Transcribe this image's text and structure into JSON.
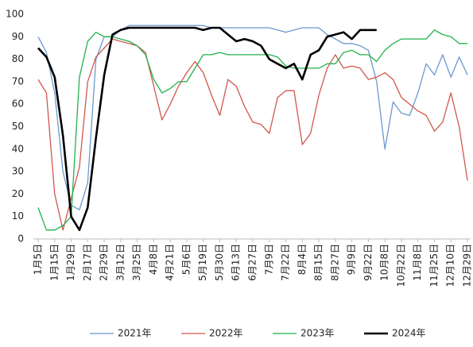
{
  "chart_data": {
    "type": "line",
    "categories": [
      "1月5日",
      null,
      "1月15日",
      null,
      "1月29日",
      null,
      "2月17日",
      null,
      "2月29日",
      null,
      "3月12日",
      null,
      "3月25日",
      null,
      "4月8日",
      null,
      "4月21日",
      null,
      "5月6日",
      null,
      "5月19日",
      null,
      "5月30日",
      null,
      "6月13日",
      null,
      "6月27日",
      null,
      "7月9日",
      null,
      "7月22日",
      null,
      "8月4日",
      null,
      "8月15日",
      null,
      "8月27日",
      null,
      "9月9日",
      null,
      "9月22日",
      null,
      "10月8日",
      null,
      "10月22日",
      null,
      "11月8日",
      null,
      "11月25日",
      null,
      "12月10日",
      null,
      "12月29日"
    ],
    "series": [
      {
        "name": "2021年",
        "color": "#6a98d0",
        "width": 1.3,
        "values": [
          90,
          83,
          65,
          30,
          15,
          13,
          25,
          80,
          90,
          90,
          93,
          95,
          95,
          95,
          95,
          95,
          95,
          95,
          95,
          95,
          95,
          94,
          94,
          94,
          94,
          94,
          94,
          94,
          94,
          93,
          92,
          93,
          94,
          94,
          94,
          91,
          89,
          87,
          87,
          86,
          84,
          70,
          40,
          61,
          56,
          55,
          65,
          78,
          73,
          82,
          72,
          81,
          73
        ]
      },
      {
        "name": "2022年",
        "color": "#d0574e",
        "width": 1.3,
        "values": [
          71,
          65,
          20,
          4,
          18,
          32,
          70,
          81,
          85,
          89,
          88,
          87,
          86,
          83,
          68,
          53,
          60,
          68,
          74,
          79,
          74,
          64,
          55,
          71,
          68,
          59,
          52,
          51,
          47,
          63,
          66,
          66,
          42,
          47,
          64,
          76,
          82,
          76,
          77,
          76,
          71,
          72,
          74,
          71,
          63,
          60,
          57,
          55,
          48,
          52,
          65,
          50,
          26
        ]
      },
      {
        "name": "2023年",
        "color": "#22b14c",
        "width": 1.3,
        "values": [
          14,
          4,
          4,
          6,
          10,
          72,
          88,
          92,
          90,
          90,
          89,
          88,
          86,
          82,
          71,
          65,
          67,
          70,
          70,
          76,
          82,
          82,
          83,
          82,
          82,
          82,
          82,
          82,
          82,
          81,
          77,
          76,
          76,
          76,
          76,
          78,
          78,
          83,
          84,
          82,
          82,
          79,
          84,
          87,
          89,
          89,
          89,
          89,
          93,
          91,
          90,
          87,
          87
        ]
      },
      {
        "name": "2024年",
        "color": "#000000",
        "width": 2.6,
        "values": [
          85,
          81,
          72,
          46,
          10,
          4,
          14,
          45,
          73,
          91,
          93,
          94,
          94,
          94,
          94,
          94,
          94,
          94,
          94,
          94,
          93,
          94,
          94,
          91,
          88,
          89,
          88,
          86,
          80,
          78,
          76,
          78,
          71,
          82,
          84,
          90,
          91,
          92,
          89,
          93,
          93,
          93,
          null,
          null,
          null,
          null,
          null,
          null,
          null,
          null,
          null,
          null,
          null
        ]
      }
    ],
    "ylim": [
      0,
      100
    ],
    "yticks": [
      0,
      10,
      20,
      30,
      40,
      50,
      60,
      70,
      80,
      90,
      100
    ],
    "grid": false,
    "legend": "bottom"
  }
}
